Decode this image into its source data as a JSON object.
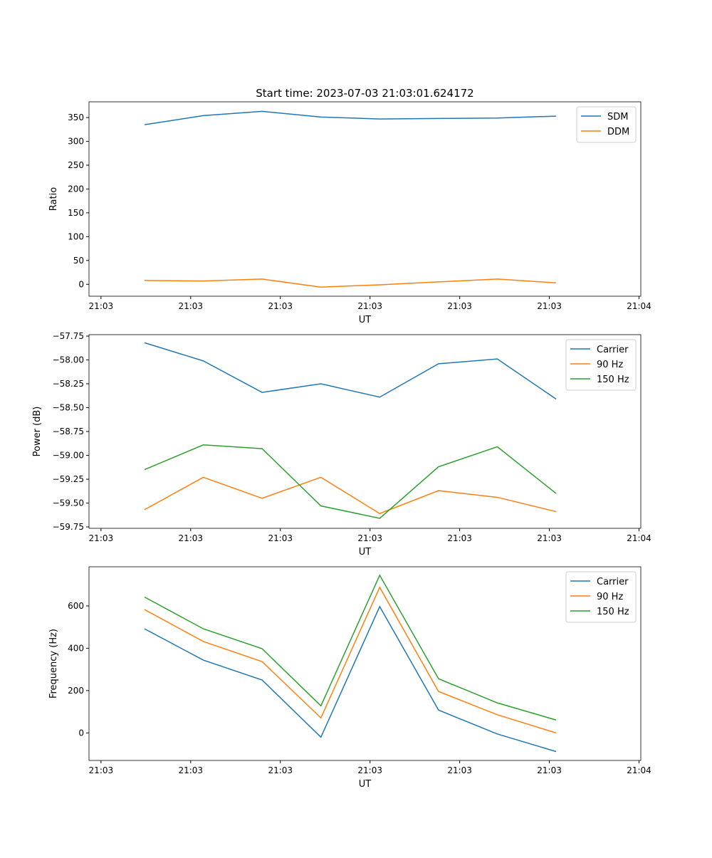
{
  "chart_data": [
    {
      "type": "line",
      "title": "Start time: 2023-07-03 21:03:01.624172",
      "xlabel": "UT",
      "ylabel": "Ratio",
      "x": [
        0,
        1,
        2,
        3,
        4,
        5,
        6,
        7
      ],
      "xlim": [
        -0.944,
        8.44
      ],
      "xticks": [
        -0.74,
        0.785,
        2.31,
        3.835,
        5.36,
        6.885,
        8.41
      ],
      "xtick_labels": [
        "21:03",
        "21:03",
        "21:03",
        "21:03",
        "21:03",
        "21:03",
        "21:04"
      ],
      "ylim": [
        -25,
        383
      ],
      "yticks": [
        0,
        50,
        100,
        150,
        200,
        250,
        300,
        350
      ],
      "ytick_labels": [
        "0",
        "50",
        "100",
        "150",
        "200",
        "250",
        "300",
        "350"
      ],
      "legend": "top-right",
      "series": [
        {
          "name": "SDM",
          "color": "#1f77b4",
          "values": [
            335,
            354,
            363,
            351,
            347,
            348,
            349,
            353
          ]
        },
        {
          "name": "DDM",
          "color": "#ff7f0e",
          "values": [
            8,
            7,
            11,
            -6,
            -1,
            5,
            11,
            3
          ]
        }
      ]
    },
    {
      "type": "line",
      "title": "",
      "xlabel": "UT",
      "ylabel": "Power (dB)",
      "x": [
        0,
        1,
        2,
        3,
        4,
        5,
        6,
        7
      ],
      "xlim": [
        -0.944,
        8.44
      ],
      "xticks": [
        -0.74,
        0.785,
        2.31,
        3.835,
        5.36,
        6.885,
        8.41
      ],
      "xtick_labels": [
        "21:03",
        "21:03",
        "21:03",
        "21:03",
        "21:03",
        "21:03",
        "21:04"
      ],
      "ylim": [
        -59.765,
        -57.735
      ],
      "yticks": [
        -59.75,
        -59.5,
        -59.25,
        -59.0,
        -58.75,
        -58.5,
        -58.25,
        -58.0,
        -57.75
      ],
      "ytick_labels": [
        "−59.75",
        "−59.50",
        "−59.25",
        "−59.00",
        "−58.75",
        "−58.50",
        "−58.25",
        "−58.00",
        "−57.75"
      ],
      "legend": "top-right",
      "series": [
        {
          "name": "Carrier",
          "color": "#1f77b4",
          "values": [
            -57.82,
            -58.01,
            -58.34,
            -58.25,
            -58.39,
            -58.04,
            -57.99,
            -58.41
          ]
        },
        {
          "name": "90 Hz",
          "color": "#ff7f0e",
          "values": [
            -59.57,
            -59.23,
            -59.45,
            -59.23,
            -59.61,
            -59.37,
            -59.44,
            -59.59
          ]
        },
        {
          "name": "150 Hz",
          "color": "#2ca02c",
          "values": [
            -59.15,
            -58.89,
            -58.93,
            -59.53,
            -59.66,
            -59.12,
            -58.91,
            -59.4
          ]
        }
      ]
    },
    {
      "type": "line",
      "title": "",
      "xlabel": "UT",
      "ylabel": "Frequency (Hz)",
      "x": [
        0,
        1,
        2,
        3,
        4,
        5,
        6,
        7
      ],
      "xlim": [
        -0.944,
        8.44
      ],
      "xticks": [
        -0.74,
        0.785,
        2.31,
        3.835,
        5.36,
        6.885,
        8.41
      ],
      "xtick_labels": [
        "21:03",
        "21:03",
        "21:03",
        "21:03",
        "21:03",
        "21:03",
        "21:04"
      ],
      "ylim": [
        -130,
        785
      ],
      "yticks": [
        0,
        200,
        400,
        600
      ],
      "ytick_labels": [
        "0",
        "200",
        "400",
        "600"
      ],
      "legend": "top-right",
      "series": [
        {
          "name": "Carrier",
          "color": "#1f77b4",
          "values": [
            492,
            344,
            250,
            -20,
            597,
            108,
            -5,
            -88
          ]
        },
        {
          "name": "90 Hz",
          "color": "#ff7f0e",
          "values": [
            583,
            432,
            337,
            71,
            688,
            196,
            86,
            0
          ]
        },
        {
          "name": "150 Hz",
          "color": "#2ca02c",
          "values": [
            642,
            492,
            398,
            128,
            745,
            256,
            142,
            61
          ]
        }
      ]
    }
  ]
}
